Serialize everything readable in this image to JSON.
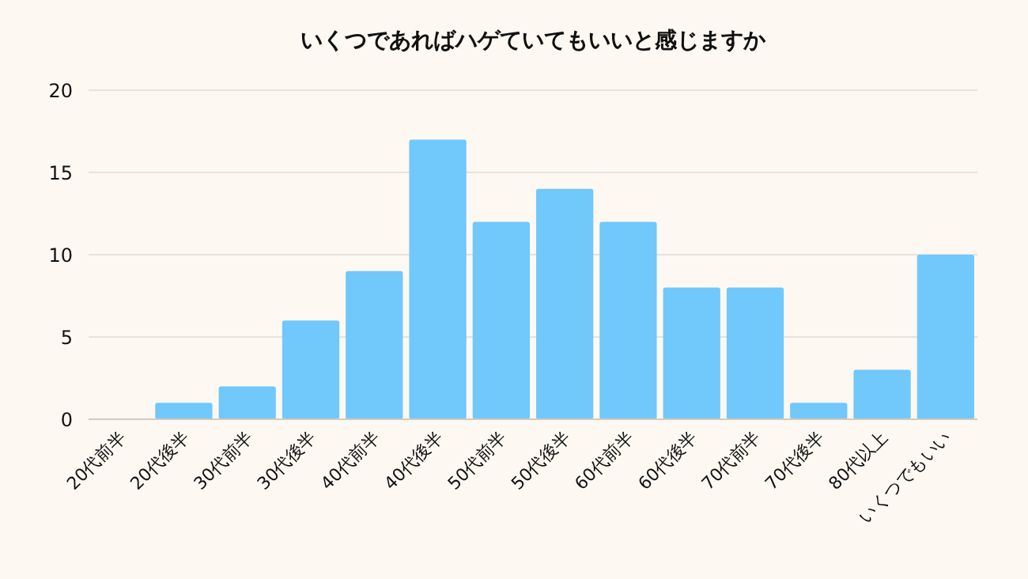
{
  "chart_data": {
    "type": "bar",
    "title": "いくつであればハゲていてもいいと感じますか",
    "categories": [
      "20代前半",
      "20代後半",
      "30代前半",
      "30代後半",
      "40代前半",
      "40代後半",
      "50代前半",
      "50代後半",
      "60代前半",
      "60代後半",
      "70代前半",
      "70代後半",
      "80代以上",
      "いくつでもいい"
    ],
    "values": [
      0,
      1,
      2,
      6,
      9,
      17,
      12,
      14,
      12,
      8,
      8,
      1,
      3,
      10
    ],
    "color": "#70c8fb",
    "ylim": [
      0,
      20
    ],
    "yticks": [
      0,
      5,
      10,
      15,
      20
    ],
    "grid": "y"
  }
}
